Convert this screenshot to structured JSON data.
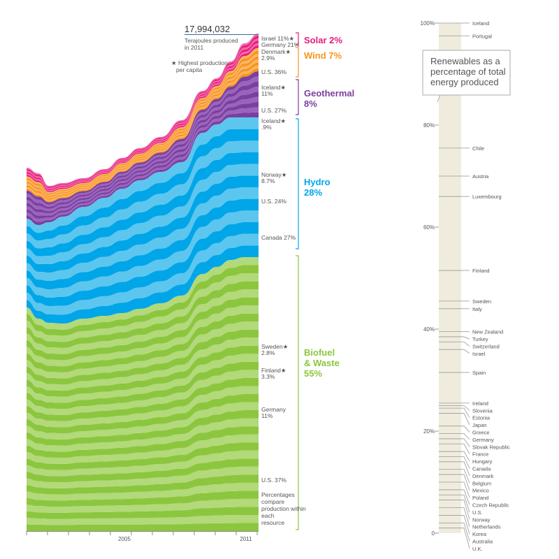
{
  "chart_data": [
    {
      "type": "area",
      "x_ticks": [
        "2005",
        "2011"
      ],
      "total": {
        "value": "17,994,032",
        "label": "Terajoules produced in 2011"
      },
      "note": "Highest production per capita",
      "footnote": "Percentages compare production within each resource",
      "trend_relative": {
        "x": [
          2000,
          2001,
          2002,
          2003,
          2004,
          2005,
          2006,
          2007,
          2008,
          2009,
          2010,
          2011
        ],
        "total_height_fraction": [
          0.72,
          0.66,
          0.69,
          0.72,
          0.75,
          0.77,
          0.8,
          0.83,
          0.86,
          0.87,
          0.96,
          1.0
        ]
      },
      "series": [
        {
          "name": "Biofuel & Waste",
          "share": "55%",
          "color": "#8cc63f",
          "color_light": "#b2d97a",
          "callouts": [
            {
              "id": "sweden",
              "text1": "Sweden",
              "star": true,
              "text2": "2.8%"
            },
            {
              "id": "finland",
              "text1": "Finland",
              "star": true,
              "text2": "3.3%"
            },
            {
              "id": "germany",
              "text1": "Germany",
              "star": false,
              "text2": "11%"
            },
            {
              "id": "us",
              "text1": "U.S. 37%",
              "star": false,
              "text2": ""
            }
          ]
        },
        {
          "name": "Hydro",
          "share": "28%",
          "color": "#00a6e8",
          "color_light": "#5cc6ef",
          "callouts": [
            {
              "id": "iceland",
              "text1": "Iceland",
              "star": true,
              "text2": ".9%"
            },
            {
              "id": "norway",
              "text1": "Norway",
              "star": true,
              "text2": "8.7%"
            },
            {
              "id": "us",
              "text1": "U.S. 24%",
              "star": false,
              "text2": ""
            },
            {
              "id": "canada",
              "text1": "Canada 27%",
              "star": false,
              "text2": ""
            }
          ]
        },
        {
          "name": "Geothermal",
          "share": "8%",
          "color": "#7b3fa0",
          "color_light": "#9a64bd",
          "callouts": [
            {
              "id": "iceland",
              "text1": "Iceland",
              "star": true,
              "text2": "11%"
            },
            {
              "id": "us",
              "text1": "U.S. 27%",
              "star": false,
              "text2": ""
            }
          ]
        },
        {
          "name": "Wind",
          "share": "7%",
          "color": "#f7941d",
          "color_light": "#fbb463",
          "callouts": [
            {
              "id": "denmark",
              "text1": "Denmark",
              "star": true,
              "text2": "2.9%"
            },
            {
              "id": "us",
              "text1": "U.S. 36%",
              "star": false,
              "text2": ""
            }
          ]
        },
        {
          "name": "Solar",
          "share": "2%",
          "color": "#e8197c",
          "color_light": "#f06aa8",
          "callouts": [
            {
              "id": "israel",
              "text1": "Israel 11%",
              "star": true,
              "text2": ""
            },
            {
              "id": "germany",
              "text1": "Germany 21%",
              "star": false,
              "text2": ""
            }
          ]
        }
      ]
    },
    {
      "type": "scatter",
      "title": "Renewables as a percentage of total energy produced",
      "y_ticks": [
        {
          "label": "100%",
          "value": 100
        },
        {
          "label": "80%",
          "value": 80
        },
        {
          "label": "60%",
          "value": 60
        },
        {
          "label": "40%",
          "value": 40
        },
        {
          "label": "20%",
          "value": 20
        },
        {
          "label": "0",
          "value": 0
        }
      ],
      "ylim": [
        0,
        100
      ],
      "countries": [
        {
          "name": "Iceland",
          "value": 100
        },
        {
          "name": "Portugal",
          "value": 97.5
        },
        {
          "name": "Chile",
          "value": 75.5
        },
        {
          "name": "Austria",
          "value": 70
        },
        {
          "name": "Luxembourg",
          "value": 66
        },
        {
          "name": "Finland",
          "value": 51.5
        },
        {
          "name": "Sweden",
          "value": 45.5
        },
        {
          "name": "Italy",
          "value": 44
        },
        {
          "name": "New Zealand",
          "value": 39.5
        },
        {
          "name": "Turkey",
          "value": 38.5
        },
        {
          "name": "Switzerland",
          "value": 37.5
        },
        {
          "name": "Israel",
          "value": 36
        },
        {
          "name": "Spain",
          "value": 31.5
        },
        {
          "name": "Ireland",
          "value": 25.5
        },
        {
          "name": "Slovenia",
          "value": 25
        },
        {
          "name": "Estonia",
          "value": 24.5
        },
        {
          "name": "Japan",
          "value": 23.5
        },
        {
          "name": "Greece",
          "value": 21
        },
        {
          "name": "Germany",
          "value": 19.5
        },
        {
          "name": "Slovak Republic",
          "value": 18.5
        },
        {
          "name": "France",
          "value": 17.5
        },
        {
          "name": "Hungary",
          "value": 16
        },
        {
          "name": "Canada",
          "value": 15
        },
        {
          "name": "Denmark",
          "value": 14
        },
        {
          "name": "Belgium",
          "value": 12.5
        },
        {
          "name": "Mexico",
          "value": 11.5
        },
        {
          "name": "Poland",
          "value": 10
        },
        {
          "name": "Czech Republic",
          "value": 8.5
        },
        {
          "name": "U.S.",
          "value": 7.5
        },
        {
          "name": "Norway",
          "value": 6.5
        },
        {
          "name": "Netherlands",
          "value": 5
        },
        {
          "name": "Korea",
          "value": 3.5
        },
        {
          "name": "Australia",
          "value": 2
        },
        {
          "name": "U.K.",
          "value": 1
        }
      ]
    }
  ]
}
